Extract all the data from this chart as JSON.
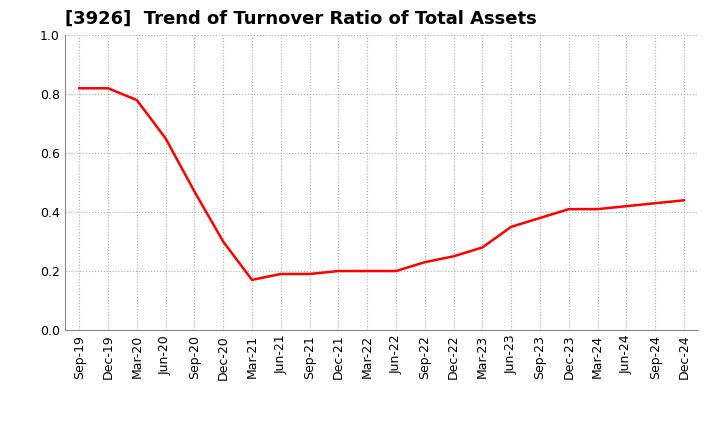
{
  "title": "[3926]  Trend of Turnover Ratio of Total Assets",
  "x_labels": [
    "Sep-19",
    "Dec-19",
    "Mar-20",
    "Jun-20",
    "Sep-20",
    "Dec-20",
    "Mar-21",
    "Jun-21",
    "Sep-21",
    "Dec-21",
    "Mar-22",
    "Jun-22",
    "Sep-22",
    "Dec-22",
    "Mar-23",
    "Jun-23",
    "Sep-23",
    "Dec-23",
    "Mar-24",
    "Jun-24",
    "Sep-24",
    "Dec-24"
  ],
  "y_values": [
    0.82,
    0.82,
    0.78,
    0.65,
    0.47,
    0.3,
    0.17,
    0.19,
    0.19,
    0.2,
    0.2,
    0.2,
    0.23,
    0.25,
    0.28,
    0.35,
    0.38,
    0.41,
    0.41,
    0.42,
    0.43,
    0.44
  ],
  "line_color": "#FF0000",
  "line_width": 1.8,
  "ylim": [
    0.0,
    1.0
  ],
  "yticks": [
    0.0,
    0.2,
    0.4,
    0.6,
    0.8,
    1.0
  ],
  "background_color": "#FFFFFF",
  "grid_color": "#AAAAAA",
  "title_fontsize": 13,
  "tick_fontsize": 9
}
